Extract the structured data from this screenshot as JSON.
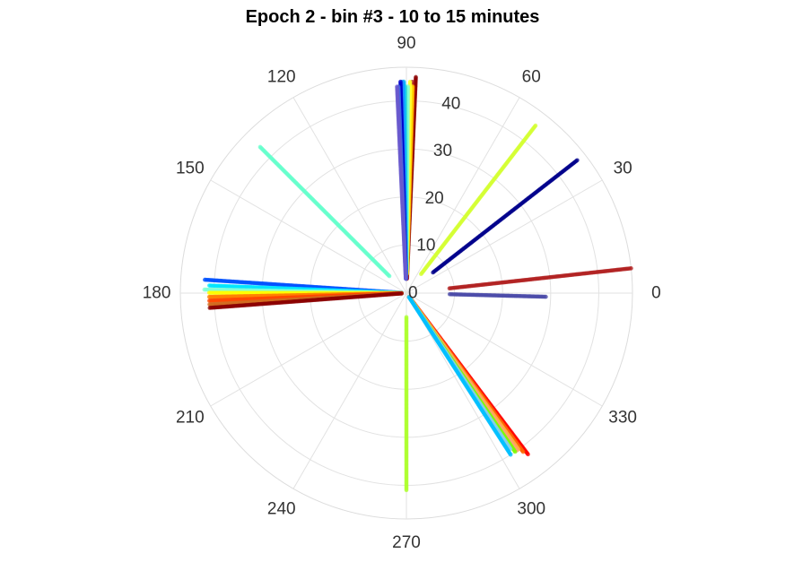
{
  "chart_data": {
    "type": "scatter",
    "subtype": "polar",
    "title": "Epoch 2 - bin #3 - 10 to 15 minutes",
    "angular_axis": {
      "unit": "degrees",
      "tick_labels": [
        "0",
        "30",
        "60",
        "90",
        "120",
        "150",
        "180",
        "210",
        "240",
        "270",
        "300",
        "330"
      ],
      "direction": "counterclockwise",
      "zero_at": "right"
    },
    "radial_axis": {
      "range": [
        0,
        47
      ],
      "tick_labels": [
        "0",
        "10",
        "20",
        "30",
        "40"
      ],
      "ticks": [
        0,
        10,
        20,
        30,
        40
      ],
      "label_angle_deg": 80
    },
    "grid": true,
    "legend": "none",
    "series": [
      {
        "angle": 87.5,
        "r_start": 3,
        "r_end": 45,
        "color": "#8b0000"
      },
      {
        "angle": 88.4,
        "r_start": 3,
        "r_end": 44,
        "color": "#b22222"
      },
      {
        "angle": 88.2,
        "r_start": 5,
        "r_end": 43,
        "color": "#ff8c00"
      },
      {
        "angle": 88.5,
        "r_start": 4,
        "r_end": 43,
        "color": "#ffd700"
      },
      {
        "angle": 89.0,
        "r_start": 4,
        "r_end": 44,
        "color": "#ffff33"
      },
      {
        "angle": 89.6,
        "r_start": 5,
        "r_end": 43,
        "color": "#7fffd4"
      },
      {
        "angle": 90.3,
        "r_start": 5,
        "r_end": 43,
        "color": "#40e0d0"
      },
      {
        "angle": 90.7,
        "r_start": 4,
        "r_end": 44,
        "color": "#00bfff"
      },
      {
        "angle": 91.1,
        "r_start": 3,
        "r_end": 44,
        "color": "#1e90ff"
      },
      {
        "angle": 91.6,
        "r_start": 3,
        "r_end": 44,
        "color": "#0000cd"
      },
      {
        "angle": 92.2,
        "r_start": 3,
        "r_end": 43,
        "color": "#4169e1"
      },
      {
        "angle": 92.6,
        "r_start": 3,
        "r_end": 43,
        "color": "#6a5acd"
      },
      {
        "angle": 52.4,
        "r_start": 5,
        "r_end": 44,
        "color": "#d4ff33"
      },
      {
        "angle": 37.9,
        "r_start": 7,
        "r_end": 45,
        "color": "#00008b"
      },
      {
        "angle": 6.3,
        "r_start": 9,
        "r_end": 47,
        "color": "#b22222"
      },
      {
        "angle": -1.5,
        "r_start": 9,
        "r_end": 29,
        "color": "#4b4ba8"
      },
      {
        "angle": 135,
        "r_start": 5,
        "r_end": 43,
        "color": "#66ffcc"
      },
      {
        "angle": 176.2,
        "r_start": 1,
        "r_end": 42,
        "color": "#0050ff"
      },
      {
        "angle": 177.8,
        "r_start": 1,
        "r_end": 41,
        "color": "#00e5ff"
      },
      {
        "angle": 179.0,
        "r_start": 1,
        "r_end": 42,
        "color": "#7fffd4"
      },
      {
        "angle": 179.9,
        "r_start": 1,
        "r_end": 41,
        "color": "#ffff00"
      },
      {
        "angle": 181.1,
        "r_start": 1,
        "r_end": 41,
        "color": "#ff7f00"
      },
      {
        "angle": 182.2,
        "r_start": 1,
        "r_end": 41,
        "color": "#ff4500"
      },
      {
        "angle": 183.3,
        "r_start": 1,
        "r_end": 41,
        "color": "#d2691e"
      },
      {
        "angle": 184.3,
        "r_start": 1,
        "r_end": 41,
        "color": "#8b0000"
      },
      {
        "angle": 270,
        "r_start": 5,
        "r_end": 41,
        "color": "#adff2f"
      },
      {
        "angle": 307.0,
        "r_start": 1,
        "r_end": 42,
        "color": "#ff0000"
      },
      {
        "angle": 306.3,
        "r_start": 1,
        "r_end": 41,
        "color": "#ff6600"
      },
      {
        "angle": 305.6,
        "r_start": 1,
        "r_end": 40,
        "color": "#ffae42"
      },
      {
        "angle": 305.0,
        "r_start": 1,
        "r_end": 40,
        "color": "#ffa07a"
      },
      {
        "angle": 304.4,
        "r_start": 1,
        "r_end": 40,
        "color": "#7cfc00"
      },
      {
        "angle": 303.7,
        "r_start": 1,
        "r_end": 39,
        "color": "#87ceeb"
      },
      {
        "angle": 302.8,
        "r_start": 1,
        "r_end": 40,
        "color": "#00bfff"
      }
    ]
  }
}
